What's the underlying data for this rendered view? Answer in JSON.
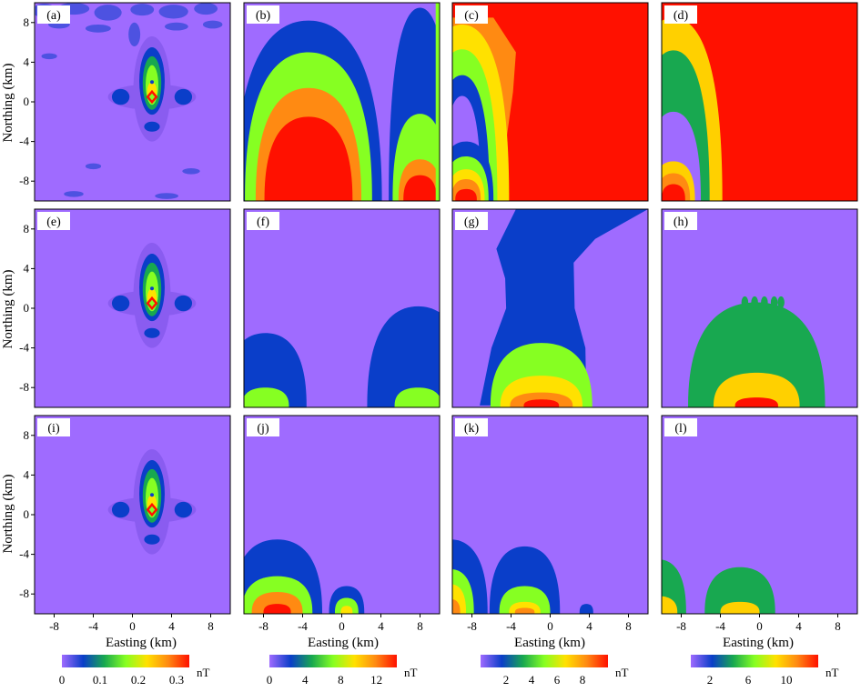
{
  "chart_data": {
    "type": "heatmap",
    "panels": [
      {
        "label": "(a)",
        "row": 0,
        "col": 0,
        "kind": "anomaly",
        "noise": true
      },
      {
        "label": "(b)",
        "row": 0,
        "col": 1,
        "kind": "field",
        "bg": "#9f6bff",
        "shapes": [
          {
            "type": "stack",
            "cx": -3.4,
            "base": -9.8,
            "half": [
              7.5,
              6.5,
              5.4,
              4.5
            ],
            "top": [
              8.2,
              5.0,
              1.4,
              -1.5
            ],
            "colors": [
              "#0a3ec9",
              "#86ff22",
              "#ff8a12",
              "#ff1100"
            ]
          },
          {
            "type": "stack",
            "cx": 8.0,
            "base": -9.8,
            "half": [
              3.2,
              2.8,
              2.2,
              1.7
            ],
            "top": [
              9.5,
              -1.2,
              -5.8,
              -7.4
            ],
            "colors": [
              "#0a3ec9",
              "#86ff22",
              "#ff8a12",
              "#ff1100"
            ]
          },
          {
            "type": "strip",
            "x": [
              9.6,
              10
            ],
            "color": "#86ff22"
          }
        ]
      },
      {
        "label": "(c)",
        "row": 0,
        "col": 2,
        "kind": "field",
        "bg": "#ff1100",
        "shapes": [
          {
            "type": "poly",
            "color": "#ff8a12",
            "pts": [
              [
                -10,
                8.5
              ],
              [
                -5.8,
                8.5
              ],
              [
                -3.5,
                5.0
              ],
              [
                -3.8,
                1.0
              ],
              [
                -4.5,
                -4.0
              ],
              [
                -6.2,
                -9.8
              ],
              [
                -10,
                -9.8
              ]
            ]
          },
          {
            "type": "stack",
            "cx": -9.0,
            "base": -9.8,
            "half": [
              4.8,
              3.6,
              2.8,
              1.9
            ],
            "top": [
              7.8,
              5.3,
              2.7,
              0.6
            ],
            "colors": [
              "#ffe100",
              "#86ff22",
              "#0a3ec9",
              "#9f6bff"
            ]
          },
          {
            "type": "stack",
            "cx": -8.6,
            "base": -9.8,
            "half": [
              2.8,
              2.3,
              1.9,
              1.5,
              1.1
            ],
            "top": [
              -4.0,
              -5.5,
              -6.8,
              -7.8,
              -8.8
            ],
            "colors": [
              "#0a3ec9",
              "#86ff22",
              "#ffe100",
              "#ff8a12",
              "#ff1100"
            ]
          }
        ]
      },
      {
        "label": "(d)",
        "row": 0,
        "col": 3,
        "kind": "field",
        "bg": "#ff1100",
        "shapes": [
          {
            "type": "stack",
            "cx": -8.8,
            "base": -9.8,
            "half": [
              5.0,
              3.7,
              2.8,
              2.2,
              1.7,
              1.2
            ],
            "top": [
              8.5,
              5.2,
              -1.0,
              -6.0,
              -7.2,
              -8.3
            ],
            "colors": [
              "#ffd000",
              "#18a850",
              "#9f6bff",
              "#ffd000",
              "#ff8a12",
              "#ff1100"
            ]
          }
        ]
      },
      {
        "label": "(e)",
        "row": 1,
        "col": 0,
        "kind": "anomaly",
        "noise": false
      },
      {
        "label": "(f)",
        "row": 1,
        "col": 1,
        "kind": "field",
        "bg": "#9f6bff",
        "shapes": [
          {
            "type": "stack",
            "cx": -7.8,
            "base": -9.8,
            "half": [
              4.2,
              2.4
            ],
            "top": [
              -2.5,
              -8.0
            ],
            "colors": [
              "#0a3ec9",
              "#86ff22"
            ]
          },
          {
            "type": "stack",
            "cx": 7.8,
            "base": -9.8,
            "half": [
              5.2,
              2.4
            ],
            "top": [
              0.2,
              -8.0
            ],
            "colors": [
              "#0a3ec9",
              "#86ff22"
            ]
          }
        ]
      },
      {
        "label": "(g)",
        "row": 1,
        "col": 2,
        "kind": "field",
        "bg": "#9f6bff",
        "shapes": [
          {
            "type": "poly",
            "color": "#0a3ec9",
            "pts": [
              [
                -3.5,
                10
              ],
              [
                10,
                10
              ],
              [
                4.6,
                7.0
              ],
              [
                2.4,
                4.6
              ],
              [
                2.5,
                0
              ],
              [
                3.6,
                -4.0
              ],
              [
                3.7,
                -9.8
              ],
              [
                -7.2,
                -9.8
              ],
              [
                -6.0,
                -4.0
              ],
              [
                -4.5,
                0
              ],
              [
                -4.6,
                3.0
              ],
              [
                -5.5,
                6.0
              ]
            ]
          },
          {
            "type": "stack",
            "cx": -0.9,
            "base": -9.8,
            "half": [
              5.2,
              4.2,
              3.2,
              1.8
            ],
            "top": [
              -3.5,
              -6.8,
              -8.5,
              -9.2
            ],
            "colors": [
              "#86ff22",
              "#ffe100",
              "#ff8a12",
              "#ff1100"
            ]
          }
        ]
      },
      {
        "label": "(h)",
        "row": 1,
        "col": 3,
        "kind": "field",
        "bg": "#9f6bff",
        "shapes": [
          {
            "type": "stack",
            "cx": -0.3,
            "base": -9.8,
            "half": [
              7.0,
              4.4,
              2.2
            ],
            "top": [
              0.6,
              -6.5,
              -9.0
            ],
            "colors": [
              "#18a850",
              "#ffd000",
              "#ff1100"
            ]
          },
          {
            "type": "bumps",
            "y": 0.6,
            "x": [
              -1.5,
              -0.5,
              0.5,
              1.5,
              2.2
            ],
            "h": 0.6,
            "color": "#18a850"
          }
        ]
      },
      {
        "label": "(i)",
        "row": 2,
        "col": 0,
        "kind": "anomaly",
        "noise": false
      },
      {
        "label": "(j)",
        "row": 2,
        "col": 1,
        "kind": "field",
        "bg": "#9f6bff",
        "shapes": [
          {
            "type": "stack",
            "cx": -6.6,
            "base": -9.8,
            "half": [
              4.6,
              3.6,
              2.6,
              1.4
            ],
            "top": [
              -2.5,
              -6.2,
              -7.8,
              -9.0
            ],
            "colors": [
              "#0a3ec9",
              "#86ff22",
              "#ff8a12",
              "#ff1100"
            ]
          },
          {
            "type": "stack",
            "cx": 0.5,
            "base": -9.8,
            "half": [
              1.8,
              1.2,
              0.6
            ],
            "top": [
              -7.2,
              -8.4,
              -9.2
            ],
            "colors": [
              "#0a3ec9",
              "#86ff22",
              "#ffe100"
            ]
          }
        ]
      },
      {
        "label": "(k)",
        "row": 2,
        "col": 2,
        "kind": "field",
        "bg": "#9f6bff",
        "shapes": [
          {
            "type": "stack",
            "cx": -10.2,
            "base": -9.8,
            "half": [
              3.8,
              2.4,
              1.6,
              1.0
            ],
            "top": [
              -2.5,
              -5.5,
              -7.0,
              -8.5
            ],
            "colors": [
              "#0a3ec9",
              "#86ff22",
              "#ffe100",
              "#ff8a12"
            ]
          },
          {
            "type": "stack",
            "cx": -2.6,
            "base": -9.8,
            "half": [
              3.6,
              2.6,
              1.6,
              1.0
            ],
            "top": [
              -3.2,
              -7.2,
              -8.8,
              -9.4
            ],
            "colors": [
              "#0a3ec9",
              "#86ff22",
              "#ffe100",
              "#ff8a12"
            ]
          },
          {
            "type": "stack",
            "cx": 3.7,
            "base": -9.8,
            "half": [
              0.7
            ],
            "top": [
              -9.0
            ],
            "colors": [
              "#0a3ec9"
            ]
          }
        ]
      },
      {
        "label": "(l)",
        "row": 2,
        "col": 3,
        "kind": "field",
        "bg": "#9f6bff",
        "shapes": [
          {
            "type": "stack",
            "cx": -10.4,
            "base": -9.8,
            "half": [
              2.9,
              2.0
            ],
            "top": [
              -4.5,
              -8.2
            ],
            "colors": [
              "#18a850",
              "#ffd000"
            ]
          },
          {
            "type": "stack",
            "cx": -2.0,
            "base": -9.8,
            "half": [
              3.6,
              2.0
            ],
            "top": [
              -5.3,
              -8.8
            ],
            "colors": [
              "#18a850",
              "#ffd000"
            ]
          }
        ]
      }
    ],
    "axes": {
      "xlim": [
        -10,
        10
      ],
      "ylim": [
        -10,
        10
      ],
      "ticks": [
        -8,
        -4,
        0,
        4,
        8
      ],
      "xlabel": "Easting (km)",
      "ylabel": "Northing (km)"
    },
    "colorbars": [
      {
        "col": 0,
        "stops": [
          "#9f6bff",
          "#0a3ec9",
          "#18a850",
          "#86ff22",
          "#ffe100",
          "#ff8a12",
          "#ff1100"
        ],
        "ticks": [
          {
            "label": "0",
            "pos": 0.0
          },
          {
            "label": "0.1",
            "pos": 0.3
          },
          {
            "label": "0.2",
            "pos": 0.6
          },
          {
            "label": "0.3",
            "pos": 0.9
          }
        ],
        "unit": "nT"
      },
      {
        "col": 1,
        "stops": [
          "#9f6bff",
          "#0a3ec9",
          "#18a850",
          "#86ff22",
          "#ffe100",
          "#ff8a12",
          "#ff1100"
        ],
        "ticks": [
          {
            "label": "0",
            "pos": 0.0
          },
          {
            "label": "4",
            "pos": 0.28
          },
          {
            "label": "8",
            "pos": 0.56
          },
          {
            "label": "12",
            "pos": 0.84
          }
        ],
        "unit": "nT"
      },
      {
        "col": 2,
        "stops": [
          "#9f6bff",
          "#0a3ec9",
          "#18a850",
          "#86ff22",
          "#ffe100",
          "#ff8a12",
          "#ff1100"
        ],
        "ticks": [
          {
            "label": "2",
            "pos": 0.2
          },
          {
            "label": "4",
            "pos": 0.4
          },
          {
            "label": "6",
            "pos": 0.6
          },
          {
            "label": "8",
            "pos": 0.8
          }
        ],
        "unit": "nT"
      },
      {
        "col": 3,
        "stops": [
          "#9f6bff",
          "#0a3ec9",
          "#18a850",
          "#86ff22",
          "#ffe100",
          "#ff8a12",
          "#ff1100"
        ],
        "ticks": [
          {
            "label": "2",
            "pos": 0.15
          },
          {
            "label": "6",
            "pos": 0.45
          },
          {
            "label": "10",
            "pos": 0.75
          }
        ],
        "unit": "nT"
      }
    ],
    "palette": {
      "background": "#9f6bff",
      "blue": "#0a3ec9",
      "green": "#18a850",
      "lime": "#86ff22",
      "yellow": "#ffe100",
      "orange": "#ff8a12",
      "red": "#ff1100"
    }
  }
}
